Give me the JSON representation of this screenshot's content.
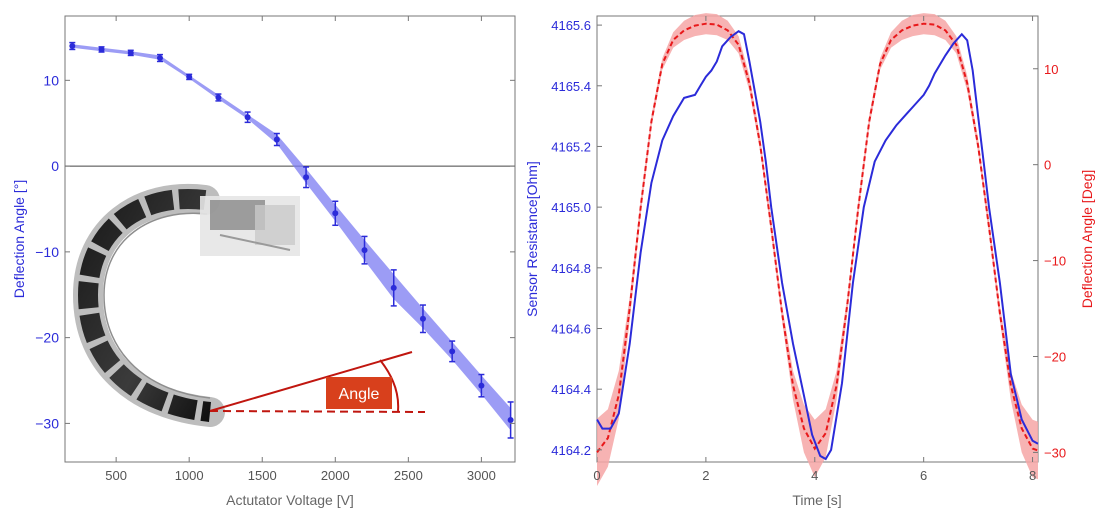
{
  "colors": {
    "blue": "#2b2bd9",
    "band_blue": "#7b7bf2",
    "red": "#e8181a",
    "band_red": "#f6a6a6",
    "annotation_red": "#c0160f",
    "label_box": "#d8401c",
    "axis": "#777777"
  },
  "chart_data": [
    {
      "type": "line",
      "xlabel": "Actutator Voltage [V]",
      "ylabel": "Deflection Angle [°]",
      "xlim": [
        150,
        3230
      ],
      "ylim": [
        -34.5,
        17.5
      ],
      "x_ticks": [
        500,
        1000,
        1500,
        2000,
        2500,
        3000
      ],
      "y_ticks": [
        10,
        0,
        -10,
        -20,
        -30
      ],
      "y_tick_labels": [
        "10",
        "0",
        "−10",
        "−20",
        "−30"
      ],
      "zero_line": true,
      "series": [
        {
          "x": [
            200,
            400,
            600,
            800,
            1000,
            1200,
            1400,
            1600,
            1800,
            2000,
            2200,
            2400,
            2600,
            2800,
            3000,
            3200
          ],
          "y": [
            14.0,
            13.6,
            13.2,
            12.6,
            10.4,
            8.0,
            5.7,
            3.1,
            -1.3,
            -5.5,
            -9.8,
            -14.2,
            -17.8,
            -21.6,
            -25.6,
            -29.6
          ],
          "error": [
            0.4,
            0.3,
            0.3,
            0.4,
            0.3,
            0.4,
            0.6,
            0.7,
            1.2,
            1.4,
            1.6,
            2.1,
            1.6,
            1.2,
            1.3,
            2.1
          ],
          "band_upper": [
            14.2,
            13.8,
            13.4,
            12.9,
            10.6,
            8.3,
            6.0,
            3.7,
            -0.3,
            -4.5,
            -8.6,
            -12.6,
            -16.6,
            -20.5,
            -24.4,
            -28.2
          ],
          "band_lower": [
            13.8,
            13.4,
            13.0,
            12.4,
            10.2,
            7.8,
            5.5,
            2.6,
            -2.0,
            -6.4,
            -11.0,
            -15.5,
            -18.9,
            -22.6,
            -26.6,
            -30.8
          ]
        }
      ],
      "inset": {
        "angle_label": "Angle"
      }
    },
    {
      "type": "line",
      "xlabel": "Time [s]",
      "ylabel_left": "Sensor Resistance[Ohm]",
      "ylabel_right": "Deflection Angle [Deg]",
      "xlim": [
        0,
        8.1
      ],
      "ylim_left": [
        4164.16,
        4165.63
      ],
      "ylim_right": [
        -31,
        15.5
      ],
      "x_ticks": [
        0,
        2,
        4,
        6,
        8
      ],
      "y_ticks_left": [
        4164.2,
        4164.4,
        4164.6,
        4164.8,
        4165.0,
        4165.2,
        4165.4,
        4165.6
      ],
      "y_tick_labels_left": [
        "4164.2",
        "4164.4",
        "4164.6",
        "4164.8",
        "4165.0",
        "4165.2",
        "4165.4",
        "4165.6"
      ],
      "y_ticks_right": [
        10,
        0,
        -10,
        -20,
        -30
      ],
      "y_tick_labels_right": [
        "10",
        "0",
        "−10",
        "−20",
        "−30"
      ],
      "series": [
        {
          "axis": "left",
          "style": "solid",
          "x": [
            0.0,
            0.1,
            0.25,
            0.4,
            0.6,
            0.8,
            1.0,
            1.2,
            1.4,
            1.6,
            1.8,
            1.9,
            2.0,
            2.1,
            2.2,
            2.3,
            2.45,
            2.6,
            2.7,
            2.8,
            2.9,
            3.0,
            3.1,
            3.2,
            3.4,
            3.6,
            3.8,
            3.95,
            4.1,
            4.2,
            4.3,
            4.5,
            4.7,
            4.9,
            5.1,
            5.3,
            5.5,
            5.7,
            5.8,
            5.9,
            6.0,
            6.1,
            6.2,
            6.4,
            6.55,
            6.7,
            6.8,
            6.9,
            7.0,
            7.1,
            7.2,
            7.4,
            7.6,
            7.8,
            8.0,
            8.1
          ],
          "y": [
            4164.3,
            4164.27,
            4164.27,
            4164.32,
            4164.55,
            4164.85,
            4165.08,
            4165.22,
            4165.3,
            4165.36,
            4165.37,
            4165.4,
            4165.43,
            4165.45,
            4165.48,
            4165.53,
            4165.56,
            4165.58,
            4165.57,
            4165.48,
            4165.38,
            4165.28,
            4165.15,
            4165.0,
            4164.75,
            4164.55,
            4164.38,
            4164.25,
            4164.18,
            4164.17,
            4164.2,
            4164.42,
            4164.75,
            4165.0,
            4165.15,
            4165.22,
            4165.27,
            4165.31,
            4165.33,
            4165.35,
            4165.37,
            4165.4,
            4165.44,
            4165.5,
            4165.54,
            4165.57,
            4165.55,
            4165.45,
            4165.3,
            4165.15,
            4165.0,
            4164.75,
            4164.45,
            4164.3,
            4164.23,
            4164.22
          ]
        },
        {
          "axis": "right",
          "style": "dashed",
          "x": [
            0.0,
            0.2,
            0.4,
            0.6,
            0.8,
            1.0,
            1.2,
            1.4,
            1.6,
            1.8,
            2.0,
            2.2,
            2.4,
            2.6,
            2.8,
            3.0,
            3.2,
            3.4,
            3.6,
            3.8,
            4.0,
            4.2,
            4.4,
            4.6,
            4.8,
            5.0,
            5.2,
            5.4,
            5.6,
            5.8,
            6.0,
            6.2,
            6.4,
            6.6,
            6.8,
            7.0,
            7.2,
            7.4,
            7.6,
            7.8,
            8.0,
            8.1
          ],
          "y": [
            -30.0,
            -28.5,
            -24.0,
            -15.0,
            -4.5,
            4.5,
            10.5,
            13.0,
            14.0,
            14.5,
            14.7,
            14.6,
            14.0,
            12.5,
            8.5,
            2.0,
            -6.5,
            -15.5,
            -23.0,
            -27.5,
            -29.6,
            -28.0,
            -23.0,
            -14.5,
            -4.5,
            4.5,
            10.5,
            13.0,
            14.0,
            14.5,
            14.7,
            14.6,
            14.0,
            12.5,
            8.5,
            2.0,
            -6.5,
            -15.5,
            -23.0,
            -27.5,
            -29.6,
            -29.8
          ],
          "band": [
            3.5,
            3.0,
            2.5,
            1.2,
            0.8,
            0.6,
            0.6,
            0.8,
            1.0,
            1.1,
            1.1,
            1.1,
            1.0,
            0.9,
            0.8,
            0.7,
            0.7,
            0.8,
            1.5,
            2.5,
            3.0,
            2.5,
            1.5,
            0.8,
            0.7,
            0.6,
            0.6,
            0.8,
            1.0,
            1.1,
            1.1,
            1.1,
            1.0,
            0.9,
            0.8,
            0.7,
            0.7,
            0.8,
            1.5,
            2.5,
            3.0,
            3.0
          ]
        }
      ]
    }
  ]
}
